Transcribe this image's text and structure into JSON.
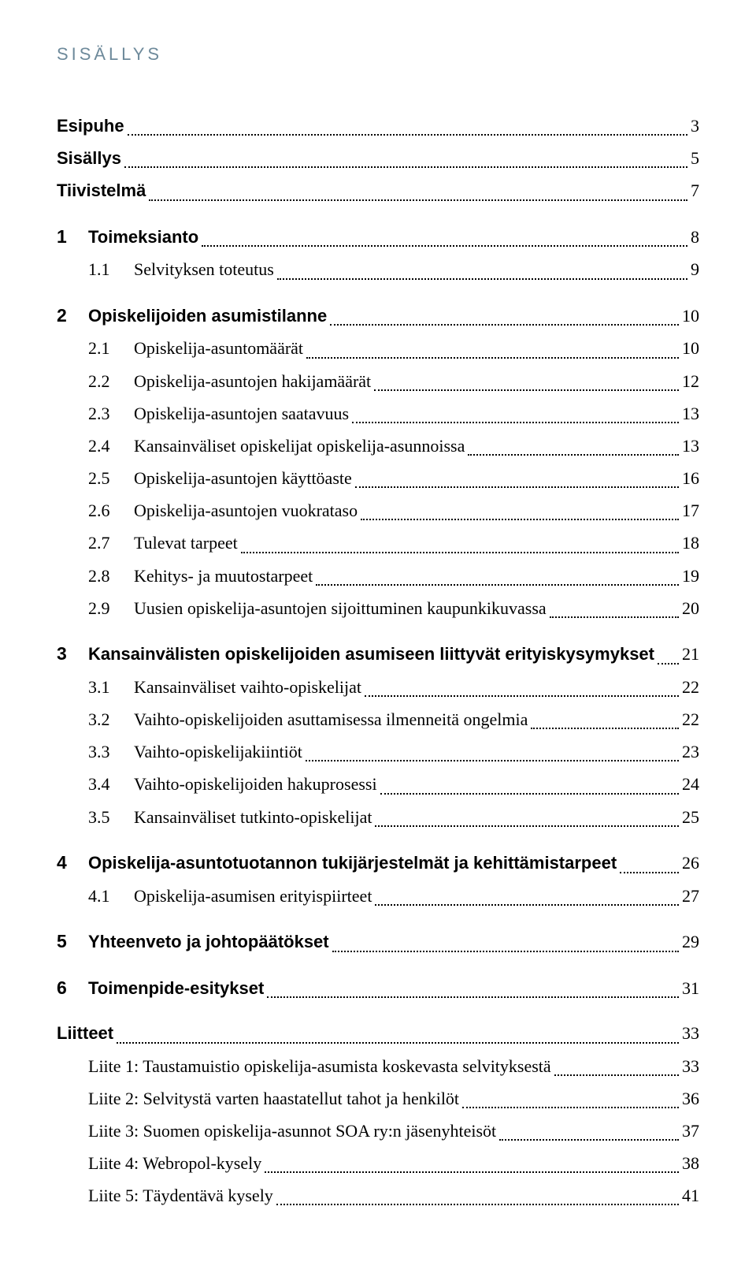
{
  "colors": {
    "heading": "#6e8a9b",
    "text": "#000000",
    "background": "#ffffff",
    "leader": "#000000"
  },
  "heading": "SISÄLLYS",
  "items": [
    {
      "type": "top-noidx",
      "label": "Esipuhe",
      "page": "3"
    },
    {
      "type": "top-noidx",
      "label": "Sisällys",
      "page": "5"
    },
    {
      "type": "top-noidx",
      "label": "Tiivistelmä",
      "page": "7"
    },
    {
      "type": "top",
      "num": "1",
      "label": "Toimeksianto",
      "page": "8",
      "gap": true
    },
    {
      "type": "sub",
      "num": "1.1",
      "label": "Selvityksen toteutus",
      "page": "9"
    },
    {
      "type": "top",
      "num": "2",
      "label": "Opiskelijoiden asumistilanne",
      "page": "10",
      "gap": true
    },
    {
      "type": "sub",
      "num": "2.1",
      "label": "Opiskelija-asuntomäärät",
      "page": "10"
    },
    {
      "type": "sub",
      "num": "2.2",
      "label": "Opiskelija-asuntojen hakijamäärät",
      "page": "12"
    },
    {
      "type": "sub",
      "num": "2.3",
      "label": "Opiskelija-asuntojen saatavuus",
      "page": "13"
    },
    {
      "type": "sub",
      "num": "2.4",
      "label": "Kansainväliset opiskelijat opiskelija-asunnoissa",
      "page": "13"
    },
    {
      "type": "sub",
      "num": "2.5",
      "label": "Opiskelija-asuntojen käyttöaste",
      "page": "16"
    },
    {
      "type": "sub",
      "num": "2.6",
      "label": "Opiskelija-asuntojen vuokrataso",
      "page": "17"
    },
    {
      "type": "sub",
      "num": "2.7",
      "label": "Tulevat tarpeet",
      "page": "18"
    },
    {
      "type": "sub",
      "num": "2.8",
      "label": "Kehitys- ja muutostarpeet",
      "page": "19"
    },
    {
      "type": "sub",
      "num": "2.9",
      "label": "Uusien opiskelija-asuntojen sijoittuminen kaupunkikuvassa",
      "page": "20"
    },
    {
      "type": "top",
      "num": "3",
      "label": "Kansainvälisten opiskelijoiden asumiseen liittyvät erityiskysymykset",
      "page": "21",
      "gap": true
    },
    {
      "type": "sub",
      "num": "3.1",
      "label": "Kansainväliset vaihto-opiskelijat",
      "page": "22"
    },
    {
      "type": "sub",
      "num": "3.2",
      "label": "Vaihto-opiskelijoiden asuttamisessa ilmenneitä ongelmia",
      "page": "22"
    },
    {
      "type": "sub",
      "num": "3.3",
      "label": "Vaihto-opiskelijakiintiöt",
      "page": "23"
    },
    {
      "type": "sub",
      "num": "3.4",
      "label": "Vaihto-opiskelijoiden hakuprosessi",
      "page": "24"
    },
    {
      "type": "sub",
      "num": "3.5",
      "label": "Kansainväliset tutkinto-opiskelijat",
      "page": "25"
    },
    {
      "type": "top",
      "num": "4",
      "label": "Opiskelija-asuntotuotannon tukijärjestelmät ja kehittämistarpeet",
      "page": "26",
      "gap": true
    },
    {
      "type": "sub",
      "num": "4.1",
      "label": "Opiskelija-asumisen erityispiirteet",
      "page": "27"
    },
    {
      "type": "top",
      "num": "5",
      "label": "Yhteenveto ja johtopäätökset",
      "page": "29",
      "gap": true
    },
    {
      "type": "top",
      "num": "6",
      "label": "Toimenpide-esitykset",
      "page": "31",
      "gap": true
    },
    {
      "type": "top-noidx",
      "label": "Liitteet",
      "page": "33",
      "gap": true
    },
    {
      "type": "plain",
      "label": "Liite 1: Taustamuistio opiskelija-asumista koskevasta selvityksestä",
      "page": "33"
    },
    {
      "type": "plain",
      "label": "Liite 2: Selvitystä varten haastatellut tahot ja henkilöt",
      "page": "36"
    },
    {
      "type": "plain",
      "label": "Liite 3: Suomen opiskelija-asunnot SOA ry:n jäsenyhteisöt",
      "page": "37"
    },
    {
      "type": "plain",
      "label": "Liite 4: Webropol-kysely",
      "page": "38"
    },
    {
      "type": "plain",
      "label": "Liite 5: Täydentävä kysely",
      "page": "41"
    }
  ]
}
